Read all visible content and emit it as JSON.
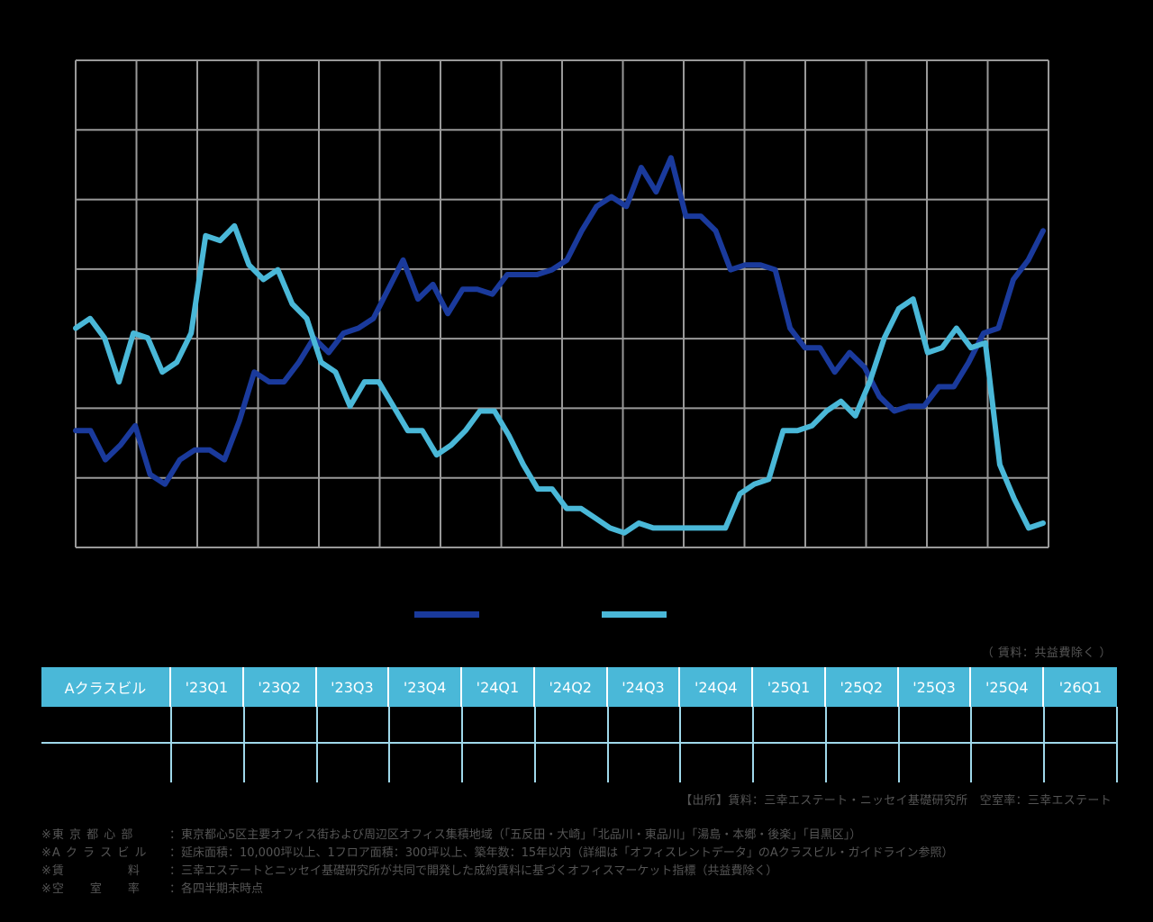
{
  "chart_data": {
    "type": "line",
    "title": "",
    "xlabel": "",
    "ylabel": "",
    "grid": true,
    "legend_position": "bottom-center",
    "x_tick_labels": [],
    "y_tick_labels": [],
    "series": [
      {
        "name": "",
        "color": "#1a3a9c",
        "values": [
          0.24,
          0.24,
          0.18,
          0.21,
          0.25,
          0.15,
          0.13,
          0.18,
          0.2,
          0.2,
          0.18,
          0.26,
          0.36,
          0.34,
          0.34,
          0.38,
          0.43,
          0.4,
          0.44,
          0.45,
          0.47,
          0.53,
          0.59,
          0.51,
          0.54,
          0.48,
          0.53,
          0.53,
          0.52,
          0.56,
          0.56,
          0.56,
          0.57,
          0.59,
          0.65,
          0.7,
          0.72,
          0.7,
          0.78,
          0.73,
          0.8,
          0.68,
          0.68,
          0.65,
          0.57,
          0.58,
          0.58,
          0.57,
          0.45,
          0.41,
          0.41,
          0.36,
          0.4,
          0.37,
          0.31,
          0.28,
          0.29,
          0.29,
          0.33,
          0.33,
          0.38,
          0.44,
          0.45,
          0.55,
          0.59,
          0.65
        ]
      },
      {
        "name": "",
        "color": "#4ab8d8",
        "values": [
          0.45,
          0.47,
          0.43,
          0.34,
          0.44,
          0.43,
          0.36,
          0.38,
          0.44,
          0.64,
          0.63,
          0.66,
          0.58,
          0.55,
          0.57,
          0.5,
          0.47,
          0.38,
          0.36,
          0.29,
          0.34,
          0.34,
          0.29,
          0.24,
          0.24,
          0.19,
          0.21,
          0.24,
          0.28,
          0.28,
          0.23,
          0.17,
          0.12,
          0.12,
          0.08,
          0.08,
          0.06,
          0.04,
          0.03,
          0.05,
          0.04,
          0.04,
          0.04,
          0.04,
          0.04,
          0.04,
          0.11,
          0.13,
          0.14,
          0.24,
          0.24,
          0.25,
          0.28,
          0.3,
          0.27,
          0.34,
          0.43,
          0.49,
          0.51,
          0.4,
          0.41,
          0.45,
          0.41,
          0.42,
          0.17,
          0.1,
          0.04,
          0.05
        ]
      }
    ],
    "quarters": [
      "'23Q1",
      "'23Q2",
      "'23Q3",
      "'23Q4",
      "'24Q1",
      "'24Q2",
      "'24Q3",
      "'24Q4",
      "'25Q1",
      "'25Q2",
      "'25Q3",
      "'25Q4",
      "'26Q1"
    ]
  },
  "legend": [
    {
      "label": "",
      "color": "#1a3a9c"
    },
    {
      "label": "",
      "color": "#4ab8d8"
    }
  ],
  "source_note": "（ 賃料：共益費除く ）",
  "table": {
    "first_header": "Aクラスビル",
    "quarters": [
      "'23Q1",
      "'23Q2",
      "'23Q3",
      "'23Q4",
      "'24Q1",
      "'24Q2",
      "'24Q3",
      "'24Q4",
      "'25Q1",
      "'25Q2",
      "'25Q3",
      "'25Q4",
      "'26Q1"
    ],
    "header_color": "#4ab8d8"
  },
  "footer_credit": "【出所】賃料：三幸エステート・ニッセイ基礎研究所　空室率：三幸エステート",
  "notes": [
    {
      "key": "※東 京 都 心 部",
      "value": "：東京都心5区主要オフィス街および周辺区オフィス集積地域（「五反田・大崎」「北品川・東品川」「湯島・本郷・後楽」「目黒区」）"
    },
    {
      "key": "※A ク ラ ス ビ ル",
      "value": "：延床面積：10,000坪以上、1フロア面積：300坪以上、築年数：15年以内（詳細は「オフィスレントデータ」のAクラスビル・ガイドライン参照）"
    },
    {
      "key": "※賃　　　　　料",
      "value": "：三幸エステートとニッセイ基礎研究所が共同で開発した成約賃料に基づくオフィスマーケット指標（共益費除く）"
    },
    {
      "key": "※空　　室　　率",
      "value": "：各四半期末時点"
    }
  ]
}
